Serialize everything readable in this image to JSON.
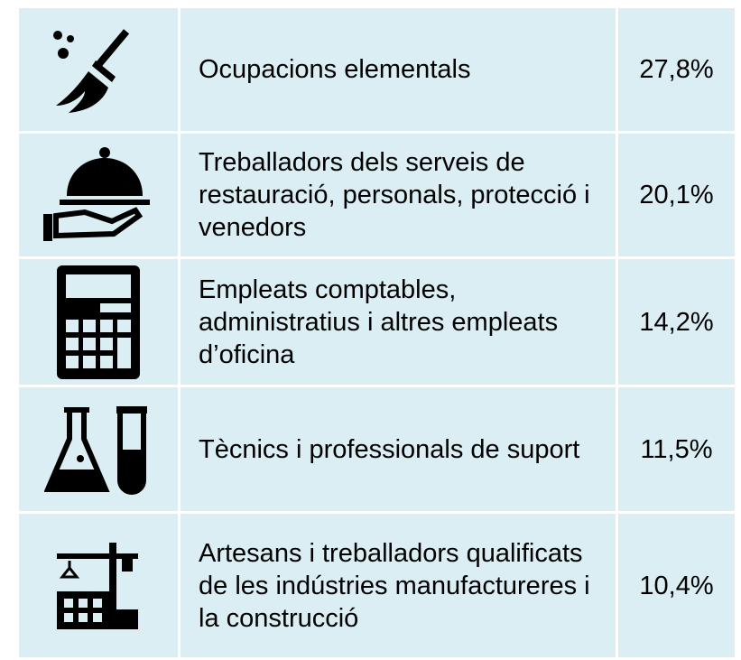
{
  "table": {
    "rows": [
      [
        "Ocupacions elementals",
        "27,8%"
      ],
      [
        "Treballadors dels serveis de restauració, personals, protecció i venedors",
        "20,1%"
      ],
      [
        "Empleats comptables, administratius i altres empleats d’oficina",
        "14,2%"
      ],
      [
        "Tècnics i professionals de suport",
        "11,5%"
      ],
      [
        "Artesans i treballadors qualificats de les indústries manufactureres i la construcció",
        "10,4%"
      ]
    ]
  }
}
